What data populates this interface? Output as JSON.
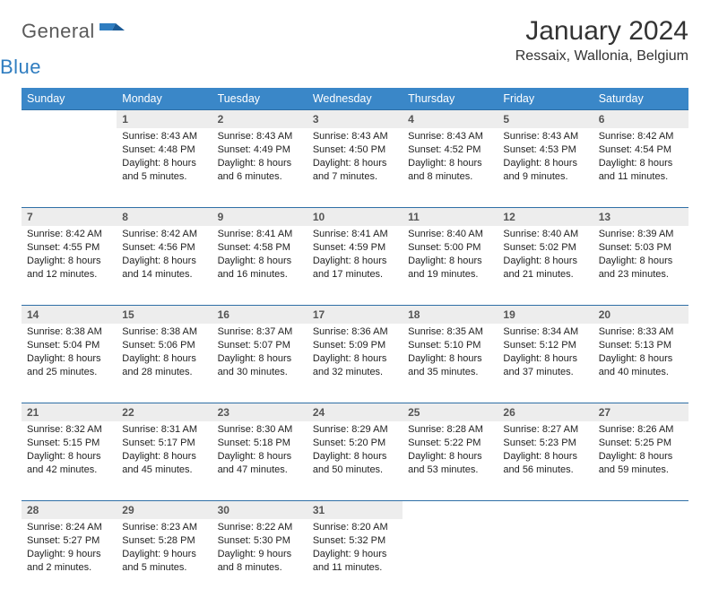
{
  "brand": {
    "general": "General",
    "blue": "Blue"
  },
  "colors": {
    "header_bg": "#3a87c8",
    "header_text": "#ffffff",
    "daynum_bg": "#ededed",
    "border": "#2f6fa6",
    "logo_gray": "#5a5a5a",
    "logo_blue": "#2f7dc0"
  },
  "title": "January 2024",
  "location": "Ressaix, Wallonia, Belgium",
  "weekdays": [
    "Sunday",
    "Monday",
    "Tuesday",
    "Wednesday",
    "Thursday",
    "Friday",
    "Saturday"
  ],
  "first_weekday_index": 1,
  "days": [
    {
      "n": 1,
      "sr": "8:43 AM",
      "ss": "4:48 PM",
      "dh": 8,
      "dm": 5
    },
    {
      "n": 2,
      "sr": "8:43 AM",
      "ss": "4:49 PM",
      "dh": 8,
      "dm": 6
    },
    {
      "n": 3,
      "sr": "8:43 AM",
      "ss": "4:50 PM",
      "dh": 8,
      "dm": 7
    },
    {
      "n": 4,
      "sr": "8:43 AM",
      "ss": "4:52 PM",
      "dh": 8,
      "dm": 8
    },
    {
      "n": 5,
      "sr": "8:43 AM",
      "ss": "4:53 PM",
      "dh": 8,
      "dm": 9
    },
    {
      "n": 6,
      "sr": "8:42 AM",
      "ss": "4:54 PM",
      "dh": 8,
      "dm": 11
    },
    {
      "n": 7,
      "sr": "8:42 AM",
      "ss": "4:55 PM",
      "dh": 8,
      "dm": 12
    },
    {
      "n": 8,
      "sr": "8:42 AM",
      "ss": "4:56 PM",
      "dh": 8,
      "dm": 14
    },
    {
      "n": 9,
      "sr": "8:41 AM",
      "ss": "4:58 PM",
      "dh": 8,
      "dm": 16
    },
    {
      "n": 10,
      "sr": "8:41 AM",
      "ss": "4:59 PM",
      "dh": 8,
      "dm": 17
    },
    {
      "n": 11,
      "sr": "8:40 AM",
      "ss": "5:00 PM",
      "dh": 8,
      "dm": 19
    },
    {
      "n": 12,
      "sr": "8:40 AM",
      "ss": "5:02 PM",
      "dh": 8,
      "dm": 21
    },
    {
      "n": 13,
      "sr": "8:39 AM",
      "ss": "5:03 PM",
      "dh": 8,
      "dm": 23
    },
    {
      "n": 14,
      "sr": "8:38 AM",
      "ss": "5:04 PM",
      "dh": 8,
      "dm": 25
    },
    {
      "n": 15,
      "sr": "8:38 AM",
      "ss": "5:06 PM",
      "dh": 8,
      "dm": 28
    },
    {
      "n": 16,
      "sr": "8:37 AM",
      "ss": "5:07 PM",
      "dh": 8,
      "dm": 30
    },
    {
      "n": 17,
      "sr": "8:36 AM",
      "ss": "5:09 PM",
      "dh": 8,
      "dm": 32
    },
    {
      "n": 18,
      "sr": "8:35 AM",
      "ss": "5:10 PM",
      "dh": 8,
      "dm": 35
    },
    {
      "n": 19,
      "sr": "8:34 AM",
      "ss": "5:12 PM",
      "dh": 8,
      "dm": 37
    },
    {
      "n": 20,
      "sr": "8:33 AM",
      "ss": "5:13 PM",
      "dh": 8,
      "dm": 40
    },
    {
      "n": 21,
      "sr": "8:32 AM",
      "ss": "5:15 PM",
      "dh": 8,
      "dm": 42
    },
    {
      "n": 22,
      "sr": "8:31 AM",
      "ss": "5:17 PM",
      "dh": 8,
      "dm": 45
    },
    {
      "n": 23,
      "sr": "8:30 AM",
      "ss": "5:18 PM",
      "dh": 8,
      "dm": 47
    },
    {
      "n": 24,
      "sr": "8:29 AM",
      "ss": "5:20 PM",
      "dh": 8,
      "dm": 50
    },
    {
      "n": 25,
      "sr": "8:28 AM",
      "ss": "5:22 PM",
      "dh": 8,
      "dm": 53
    },
    {
      "n": 26,
      "sr": "8:27 AM",
      "ss": "5:23 PM",
      "dh": 8,
      "dm": 56
    },
    {
      "n": 27,
      "sr": "8:26 AM",
      "ss": "5:25 PM",
      "dh": 8,
      "dm": 59
    },
    {
      "n": 28,
      "sr": "8:24 AM",
      "ss": "5:27 PM",
      "dh": 9,
      "dm": 2
    },
    {
      "n": 29,
      "sr": "8:23 AM",
      "ss": "5:28 PM",
      "dh": 9,
      "dm": 5
    },
    {
      "n": 30,
      "sr": "8:22 AM",
      "ss": "5:30 PM",
      "dh": 9,
      "dm": 8
    },
    {
      "n": 31,
      "sr": "8:20 AM",
      "ss": "5:32 PM",
      "dh": 9,
      "dm": 11
    }
  ],
  "labels": {
    "sunrise": "Sunrise:",
    "sunset": "Sunset:",
    "daylight": "Daylight:",
    "hours": "hours",
    "and": "and",
    "minutes": "minutes."
  }
}
